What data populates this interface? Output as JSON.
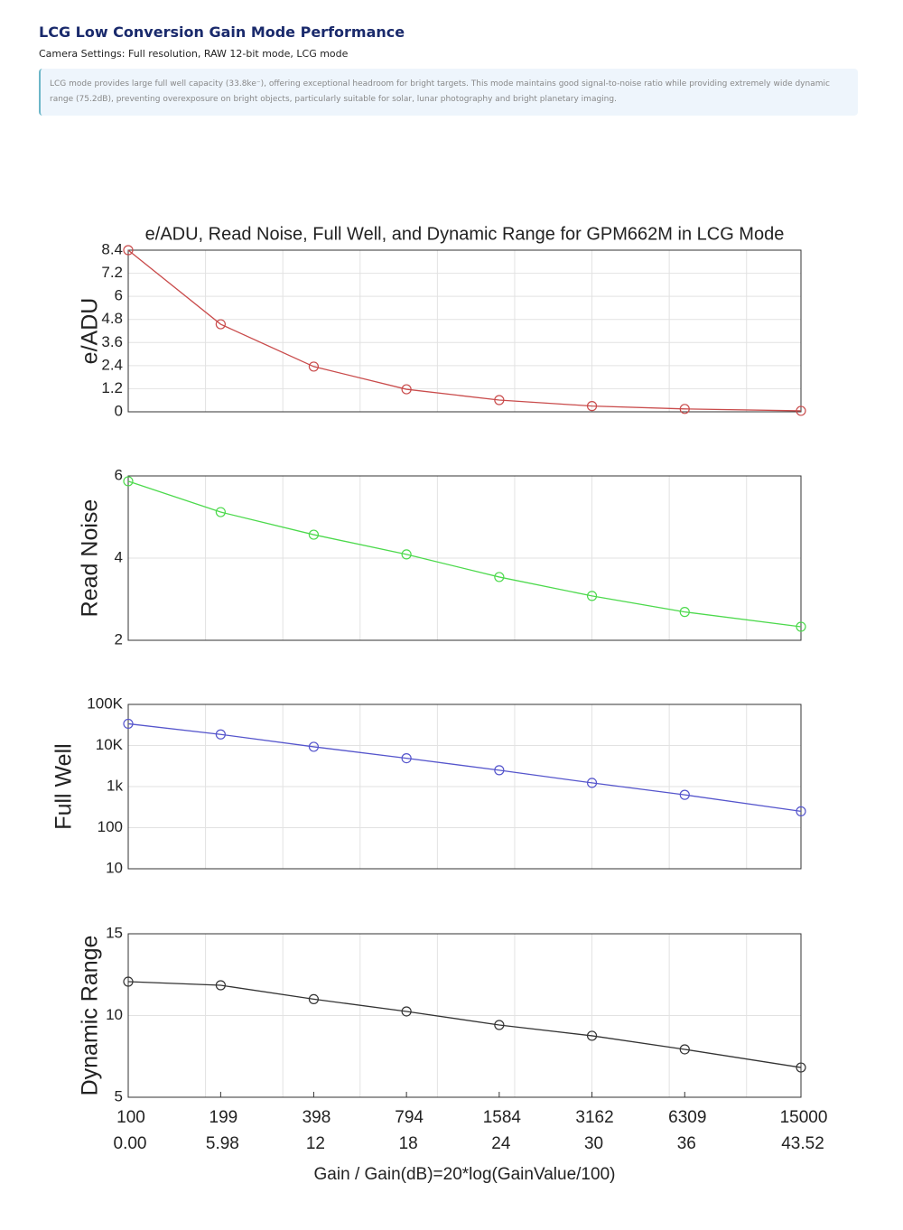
{
  "header": {
    "title": "LCG Low Conversion Gain Mode Performance",
    "subtitle": "Camera Settings: Full resolution, RAW 12-bit mode, LCG mode",
    "note": "LCG mode provides large full well capacity (33.8ke⁻), offering exceptional headroom for bright targets. This mode maintains good signal-to-noise ratio while providing extremely wide dynamic range (75.2dB), preventing overexposure on bright objects, particularly suitable for solar, lunar photography and bright planetary imaging."
  },
  "chart_data": [
    {
      "type": "line",
      "title": "e/ADU, Read Noise, Full Well, and Dynamic Range for GPM662M in LCG Mode",
      "ylabel": "e/ADU",
      "x": [
        0,
        5.98,
        12,
        18,
        24,
        30,
        36,
        43.52
      ],
      "xlim": [
        0,
        43.52
      ],
      "xgrid": [
        5,
        10,
        15,
        20,
        25,
        30,
        35,
        40
      ],
      "series": [
        {
          "name": "e/ADU",
          "color": "#c94b4b",
          "values": [
            8.4,
            4.55,
            2.35,
            1.17,
            0.61,
            0.3,
            0.15,
            0.05
          ]
        }
      ],
      "ylim": [
        0,
        8.4
      ],
      "yticks": [
        0,
        1.2,
        2.4,
        3.6,
        4.8,
        6,
        7.2,
        8.4
      ],
      "grid": true
    },
    {
      "type": "line",
      "ylabel": "Read Noise",
      "x": [
        0,
        5.98,
        12,
        18,
        24,
        30,
        36,
        43.52
      ],
      "xlim": [
        0,
        43.52
      ],
      "xgrid": [
        5,
        10,
        15,
        20,
        25,
        30,
        35,
        40
      ],
      "series": [
        {
          "name": "Read Noise",
          "color": "#4cd94c",
          "values": [
            5.87,
            5.12,
            4.57,
            4.09,
            3.54,
            3.08,
            2.69,
            2.33
          ]
        }
      ],
      "ylim": [
        2,
        6
      ],
      "yticks": [
        2,
        4,
        6
      ],
      "grid": true
    },
    {
      "type": "line",
      "ylabel": "Full Well",
      "ylog": true,
      "x": [
        0,
        5.98,
        12,
        18,
        24,
        30,
        36,
        43.52
      ],
      "xlim": [
        0,
        43.52
      ],
      "xgrid": [
        5,
        10,
        15,
        20,
        25,
        30,
        35,
        40
      ],
      "series": [
        {
          "name": "Full Well",
          "color": "#5555cc",
          "values": [
            33800,
            18600,
            9300,
            4900,
            2500,
            1230,
            630,
            250
          ]
        }
      ],
      "ylim": [
        10,
        100000
      ],
      "yticks": [
        10,
        100,
        {
          "value": 1000,
          "label": "1k"
        },
        {
          "value": 10000,
          "label": "10K"
        },
        {
          "value": 100000,
          "label": "100K"
        }
      ],
      "grid": true
    },
    {
      "type": "line",
      "ylabel": "Dynamic Range",
      "xlabel": "Gain / Gain(dB)=20*log(GainValue/100)",
      "x": [
        0,
        5.98,
        12,
        18,
        24,
        30,
        36,
        43.52
      ],
      "xlim": [
        0,
        43.52
      ],
      "xgrid": [
        5,
        10,
        15,
        20,
        25,
        30,
        35,
        40
      ],
      "xticks": [
        {
          "value": 0,
          "label": "0.00"
        },
        5.98,
        12,
        18,
        24,
        30,
        36,
        43.52
      ],
      "x_gain": [
        100,
        199,
        398,
        794,
        1584,
        3162,
        6309,
        15000
      ],
      "series": [
        {
          "name": "Dynamic Range",
          "color": "#333333",
          "values": [
            12.07,
            11.85,
            11.0,
            10.25,
            9.42,
            8.76,
            7.93,
            6.82
          ]
        }
      ],
      "ylim": [
        5,
        15
      ],
      "yticks": [
        5,
        10,
        15
      ],
      "grid": true
    }
  ]
}
